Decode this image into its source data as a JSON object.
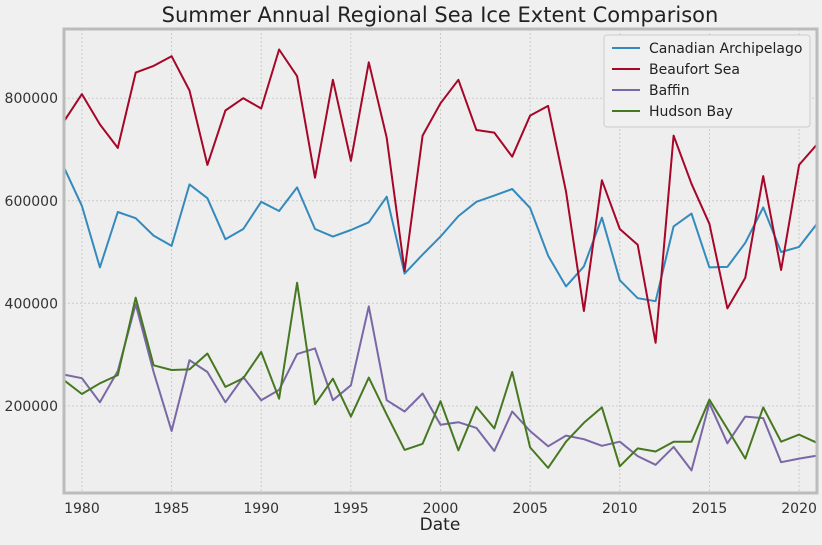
{
  "chart_data": {
    "type": "line",
    "title": "Summer Annual Regional Sea Ice Extent Comparison",
    "xlabel": "Date",
    "ylabel": "",
    "xlim": [
      1979,
      2021
    ],
    "ylim": [
      30000,
      935000
    ],
    "x_ticks": [
      1980,
      1985,
      1990,
      1995,
      2000,
      2005,
      2010,
      2015,
      2020
    ],
    "y_ticks": [
      200000,
      400000,
      600000,
      800000
    ],
    "grid": true,
    "legend_position": "top-right",
    "x": [
      1979,
      1980,
      1981,
      1982,
      1983,
      1984,
      1985,
      1986,
      1987,
      1988,
      1989,
      1990,
      1991,
      1992,
      1993,
      1994,
      1995,
      1996,
      1997,
      1998,
      1999,
      2000,
      2001,
      2002,
      2003,
      2004,
      2005,
      2006,
      2007,
      2008,
      2009,
      2010,
      2011,
      2012,
      2013,
      2014,
      2015,
      2016,
      2017,
      2018,
      2019,
      2020,
      2021
    ],
    "series": [
      {
        "name": "Canadian Archipelago",
        "color": "#348abd",
        "values": [
          665000,
          590000,
          470000,
          578000,
          566000,
          532000,
          512000,
          632000,
          605000,
          525000,
          545000,
          598000,
          580000,
          626000,
          545000,
          530000,
          543000,
          558000,
          608000,
          458000,
          495000,
          530000,
          570000,
          598000,
          610000,
          623000,
          586000,
          493000,
          433000,
          472000,
          567000,
          445000,
          410000,
          404000,
          550000,
          575000,
          470000,
          471000,
          518000,
          587000,
          500000,
          510000,
          555000
        ]
      },
      {
        "name": "Beaufort Sea",
        "color": "#a60628",
        "values": [
          755000,
          808000,
          749000,
          703000,
          850000,
          863000,
          882000,
          815000,
          670000,
          776000,
          800000,
          780000,
          895000,
          843000,
          645000,
          836000,
          678000,
          870000,
          723000,
          463000,
          727000,
          790000,
          836000,
          738000,
          733000,
          686000,
          766000,
          785000,
          618000,
          385000,
          640000,
          545000,
          514000,
          323000,
          727000,
          633000,
          555000,
          390000,
          450000,
          648000,
          465000,
          670000,
          710000
        ]
      },
      {
        "name": "Baffin",
        "color": "#7a68a6",
        "values": [
          261000,
          254000,
          207000,
          268000,
          398000,
          266000,
          151000,
          289000,
          266000,
          207000,
          256000,
          211000,
          231000,
          301000,
          312000,
          211000,
          240000,
          394000,
          211000,
          189000,
          224000,
          163000,
          168000,
          157000,
          112000,
          189000,
          151000,
          121000,
          142000,
          135000,
          122000,
          130000,
          102000,
          85000,
          120000,
          74000,
          205000,
          127000,
          179000,
          176000,
          90000,
          97000,
          103000
        ]
      },
      {
        "name": "Hudson Bay",
        "color": "#467821",
        "values": [
          250000,
          223000,
          244000,
          260000,
          411000,
          279000,
          270000,
          271000,
          302000,
          237000,
          254000,
          305000,
          214000,
          440000,
          203000,
          253000,
          179000,
          255000,
          183000,
          114000,
          126000,
          209000,
          113000,
          198000,
          156000,
          266000,
          119000,
          79000,
          130000,
          167000,
          197000,
          82000,
          117000,
          111000,
          130000,
          130000,
          212000,
          155000,
          97000,
          197000,
          130000,
          144000,
          128000
        ]
      }
    ]
  }
}
